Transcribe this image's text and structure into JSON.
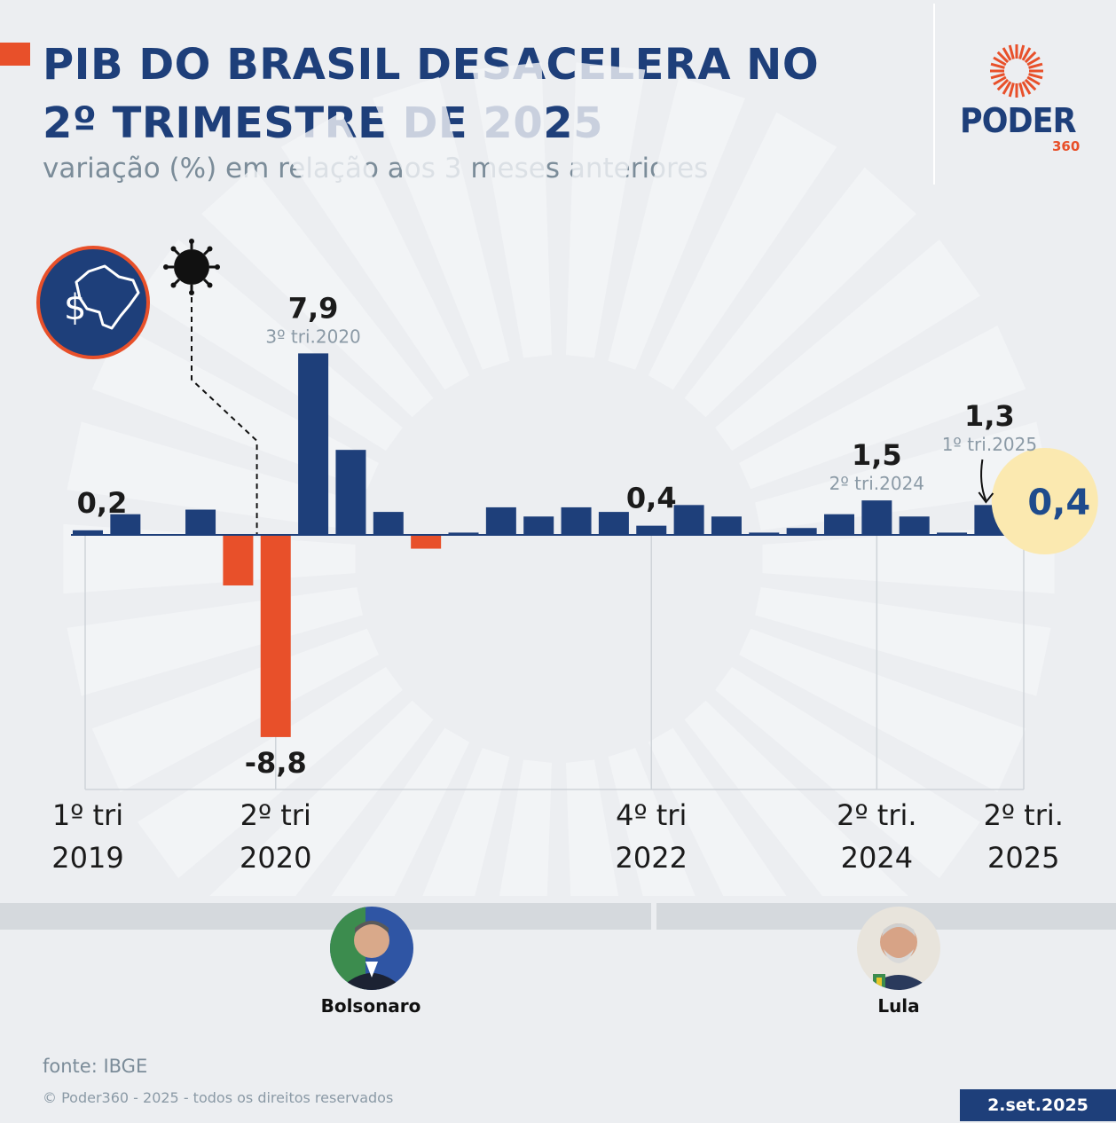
{
  "header": {
    "title_line1": "PIB DO BRASIL DESACELERA NO",
    "title_line2": "2º TRIMESTRE DE 2025",
    "subtitle": "variação (%) em relação aos 3 meses anteriores"
  },
  "logo": {
    "word": "PODER",
    "number": "360"
  },
  "colors": {
    "positive": "#1e3f7a",
    "negative": "#e8502a",
    "highlight": "#fbe9b0",
    "accent": "#e8502a"
  },
  "icons": [
    "brazil-money-icon",
    "virus-icon"
  ],
  "chart_data": {
    "type": "bar",
    "ylabel": "variação (%)",
    "values": [
      0.2,
      0.9,
      0,
      1.1,
      -2.2,
      -8.8,
      7.9,
      3.7,
      1.0,
      -0.6,
      0.1,
      1.2,
      0.8,
      1.2,
      1.0,
      0.4,
      1.3,
      0.8,
      0.1,
      0.3,
      0.9,
      1.5,
      0.8,
      0.1,
      1.3,
      0.4
    ],
    "annotations": [
      {
        "index": 0,
        "label": "0,2"
      },
      {
        "index": 5,
        "label": "-8,8"
      },
      {
        "index": 6,
        "label": "7,9",
        "sublabel": "3º tri.2020"
      },
      {
        "index": 15,
        "label": "0,4"
      },
      {
        "index": 21,
        "label": "1,5",
        "sublabel": "2º tri.2024"
      },
      {
        "index": 24,
        "label": "1,3",
        "sublabel": "1º tri.2025"
      },
      {
        "index": 25,
        "label": "0,4",
        "highlight": true
      }
    ],
    "x_ticks": [
      {
        "index": 0,
        "line1": "1º tri",
        "line2": "2019"
      },
      {
        "index": 5,
        "line1": "2º tri",
        "line2": "2020"
      },
      {
        "index": 15,
        "line1": "4º tri",
        "line2": "2022"
      },
      {
        "index": 21,
        "line1": "2º tri.",
        "line2": "2024"
      },
      {
        "index": 25,
        "line1": "2º tri.",
        "line2": "2025"
      }
    ],
    "pandemic_marker_index": 4
  },
  "presidents": [
    {
      "name": "Bolsonaro"
    },
    {
      "name": "Lula"
    }
  ],
  "footer": {
    "source": "fonte: IBGE",
    "copyright": "© Poder360 - 2025 - todos os direitos reservados",
    "date": "2.set.2025"
  }
}
